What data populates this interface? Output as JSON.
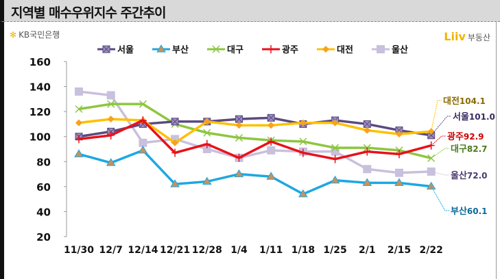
{
  "header": {
    "title": "지역별 매수우위지수 주간추이"
  },
  "logos": {
    "kb": "KB국민은행",
    "liiv_mark": "Liiv",
    "liiv_text": "부동산"
  },
  "chart_data": {
    "type": "line",
    "title": "지역별 매수우위지수 주간추이",
    "categories": [
      "11/30",
      "12/7",
      "12/14",
      "12/21",
      "12/28",
      "1/4",
      "1/11",
      "1/18",
      "1/25",
      "2/1",
      "2/15",
      "2/22"
    ],
    "ylim": [
      20,
      160
    ],
    "yticks": [
      20,
      40,
      60,
      80,
      100,
      120,
      140,
      160
    ],
    "legend": "top",
    "series": [
      {
        "name": "서울",
        "color": "#5b4a80",
        "marker": "x-square",
        "values": [
          100,
          104,
          110,
          112,
          112,
          114,
          115,
          110,
          113,
          110,
          105,
          101.0
        ],
        "end_label": "101.0"
      },
      {
        "name": "부산",
        "color": "#1ea7e1",
        "marker": "triangle",
        "values": [
          86,
          79,
          89,
          62,
          64,
          70,
          68,
          54,
          65,
          63,
          63,
          60.1
        ],
        "end_label": "60.1"
      },
      {
        "name": "대구",
        "color": "#8dc63f",
        "marker": "x",
        "values": [
          122,
          126,
          126,
          110,
          103,
          99,
          97,
          96,
          91,
          91,
          89,
          82.7
        ],
        "end_label": "82.7"
      },
      {
        "name": "광주",
        "color": "#e8111a",
        "marker": "plus",
        "values": [
          98,
          101,
          113,
          87,
          94,
          83,
          96,
          87,
          82,
          88,
          86,
          92.9
        ],
        "end_label": "92.9"
      },
      {
        "name": "대전",
        "color": "#ffc000",
        "marker": "diamond",
        "values": [
          111,
          114,
          113,
          95,
          112,
          109,
          109,
          111,
          111,
          105,
          102,
          104.1
        ],
        "end_label": "104.1"
      },
      {
        "name": "울산",
        "color": "#c8c0dc",
        "marker": "square",
        "values": [
          136,
          133,
          95,
          98,
          90,
          83,
          89,
          88,
          88,
          74,
          71,
          72.0
        ],
        "end_label": "72.0"
      }
    ]
  }
}
